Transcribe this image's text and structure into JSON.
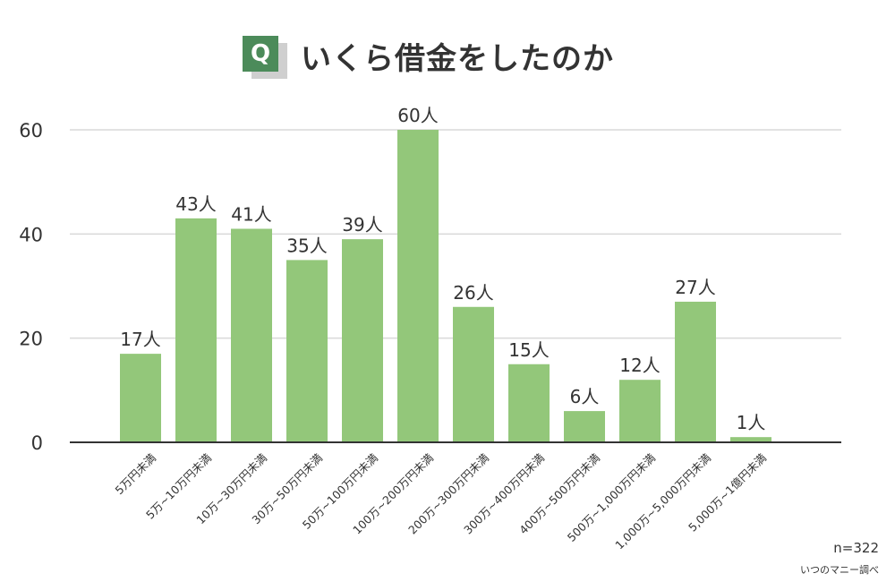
{
  "header": {
    "badge": "Q",
    "title": "いくら借金をしたのか"
  },
  "footer": {
    "sample_size": "n=322",
    "source": "いつのマニー調べ"
  },
  "colors": {
    "bar": "#93c77a",
    "badge": "#4c8b5a",
    "grid": "#d9d9d9",
    "axis": "#333333",
    "text": "#333333"
  },
  "chart_data": {
    "type": "bar",
    "categories": [
      "5万円未満",
      "5万~10万円未満",
      "10万~30万円未満",
      "30万~50万円未満",
      "50万~100万円未満",
      "100万~200万円未満",
      "200万~300万円未満",
      "300万~400万円未満",
      "400万~500万円未満",
      "500万~1,000万円未満",
      "1,000万~5,000万円未満",
      "5,000万~1億円未満"
    ],
    "values": [
      17,
      43,
      41,
      35,
      39,
      60,
      26,
      15,
      6,
      12,
      27,
      1
    ],
    "value_suffix": "人",
    "ylim": [
      0,
      60
    ],
    "yticks": [
      0,
      20,
      40,
      60
    ],
    "grid": true,
    "xlabel": "",
    "ylabel": ""
  }
}
